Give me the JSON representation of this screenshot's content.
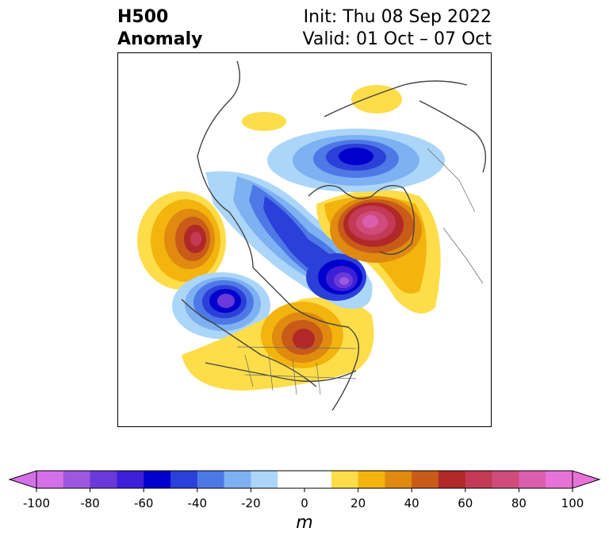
{
  "header": {
    "title_line1": "H500",
    "title_line2": "Anomaly",
    "init_label": "Init: Thu 08 Sep 2022",
    "valid_label": "Valid: 01 Oct – 07 Oct"
  },
  "map": {
    "variable": "500 hPa geopotential height anomaly",
    "anomalies": [
      {
        "name": "gulf-of-alaska-ridge",
        "sign": "positive",
        "peak": 60
      },
      {
        "name": "northwest-us-trough",
        "sign": "negative",
        "peak": -80
      },
      {
        "name": "central-canada-ridge",
        "sign": "positive",
        "peak": 60
      },
      {
        "name": "canada-arctic-trough",
        "sign": "negative",
        "peak": -80
      },
      {
        "name": "greenland-ridge",
        "sign": "positive",
        "peak": 80
      },
      {
        "name": "siberian-arctic-trough",
        "sign": "negative",
        "peak": -60
      },
      {
        "name": "east-siberia-ridge",
        "sign": "positive",
        "peak": 20
      },
      {
        "name": "north-russia-ridge",
        "sign": "positive",
        "peak": 20
      }
    ]
  },
  "colorbar": {
    "unit": "m",
    "tick_labels": [
      "-100",
      "-80",
      "-60",
      "-40",
      "-20",
      "0",
      "20",
      "40",
      "60",
      "80",
      "100"
    ],
    "extend": "both",
    "colors": [
      "#d471e9",
      "#9d57e0",
      "#6b39d9",
      "#3d1fd8",
      "#0000cd",
      "#2b3fd9",
      "#4e78e6",
      "#7eb1f2",
      "#abd6f9",
      "#ffffff",
      "#ffffff",
      "#fddd4a",
      "#f2b40d",
      "#e08a10",
      "#c85b18",
      "#b02828",
      "#c23a55",
      "#cf4b7a",
      "#db5fae",
      "#e873d8"
    ]
  }
}
